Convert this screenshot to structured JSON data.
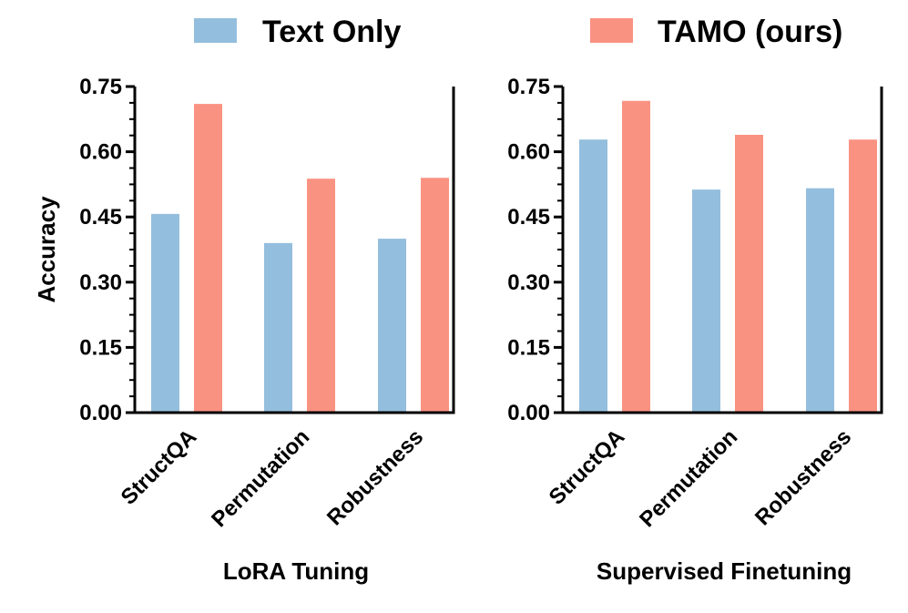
{
  "legend": {
    "items": [
      {
        "label": "Text Only",
        "color": "#94BEDD"
      },
      {
        "label": "TAMO (ours)",
        "color": "#FA9282"
      }
    ]
  },
  "chart_data": [
    {
      "type": "bar",
      "title": "",
      "xlabel": "LoRA Tuning",
      "ylabel": "Accuracy",
      "ylim": [
        0,
        0.75
      ],
      "yticks": [
        "0.00",
        "0.15",
        "0.30",
        "0.45",
        "0.60",
        "0.75"
      ],
      "categories": [
        "StructQA",
        "Permutation",
        "Robustness"
      ],
      "series": [
        {
          "name": "Text Only",
          "values": [
            0.457,
            0.39,
            0.4
          ]
        },
        {
          "name": "TAMO (ours)",
          "values": [
            0.71,
            0.538,
            0.54
          ]
        }
      ]
    },
    {
      "type": "bar",
      "title": "",
      "xlabel": "Supervised Finetuning",
      "ylabel": "",
      "ylim": [
        0,
        0.75
      ],
      "yticks": [
        "0.00",
        "0.15",
        "0.30",
        "0.45",
        "0.60",
        "0.75"
      ],
      "categories": [
        "StructQA",
        "Permutation",
        "Robustness"
      ],
      "series": [
        {
          "name": "Text Only",
          "values": [
            0.628,
            0.513,
            0.516
          ]
        },
        {
          "name": "TAMO (ours)",
          "values": [
            0.717,
            0.639,
            0.628
          ]
        }
      ]
    }
  ]
}
